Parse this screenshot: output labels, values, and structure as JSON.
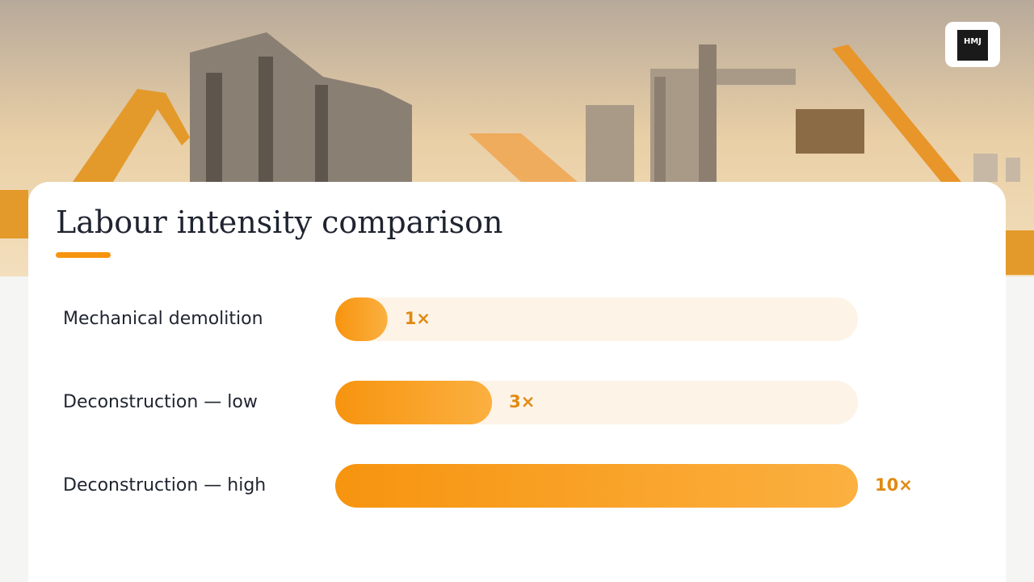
{
  "logo": "HMJ",
  "chart_data": {
    "type": "bar",
    "orientation": "horizontal",
    "title": "Labour intensity comparison",
    "categories": [
      "Mechanical demolition",
      "Deconstruction — low",
      "Deconstruction — high"
    ],
    "values": [
      1,
      3,
      10
    ],
    "value_labels": [
      "1×",
      "3×",
      "10×"
    ],
    "color": "#f7940f",
    "xlim": [
      0,
      10
    ]
  }
}
